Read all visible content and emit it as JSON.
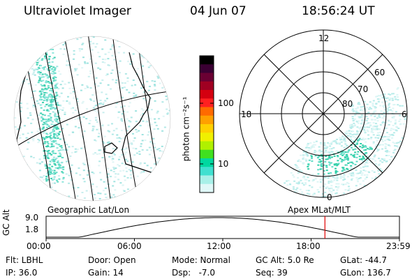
{
  "header": {
    "instrument": "Ultraviolet Imager",
    "date": "04 Jun 07",
    "time": "18:56:24 UT"
  },
  "panels": {
    "geographic_label": "Geographic Lat/Lon",
    "apex_label": "Apex MLat/MLT"
  },
  "colorbar": {
    "unit_label": "photon cm⁻²s⁻¹",
    "tick_100": "100",
    "tick_10": "10",
    "colors": [
      "#000000",
      "#3a0033",
      "#6a0033",
      "#a00022",
      "#d40010",
      "#ff2020",
      "#ff6a00",
      "#ffa000",
      "#ffd000",
      "#f0f000",
      "#b0f000",
      "#40e020",
      "#00d8a0",
      "#40e0d0",
      "#a8f0e8",
      "#e0f8f8"
    ]
  },
  "polar": {
    "mlt_labels": {
      "top": "12",
      "left": "18",
      "right": "6",
      "bottom": "0"
    },
    "lat_labels": [
      "60",
      "70",
      "80"
    ]
  },
  "timeline": {
    "ylabel": "GC Alt",
    "y_ticks": [
      "9.0",
      "1.8"
    ],
    "x_ticks": [
      "00:00",
      "06:00",
      "12:00",
      "18:00",
      "23:59"
    ],
    "marker_time_hours": 18.94,
    "marker_color": "#e00000"
  },
  "info": {
    "flt": "Flt: LBHL",
    "ip": "IP: 36.0",
    "door": "Door: Open",
    "gain": "Gain: 14",
    "mode": "Mode: Normal",
    "dsp": "Dsp:   -7.0",
    "gc_alt": "GC Alt: 5.0 Re",
    "seq": "Seq: 39",
    "glat": "GLat: -44.7",
    "glon": "GLon: 136.7"
  }
}
